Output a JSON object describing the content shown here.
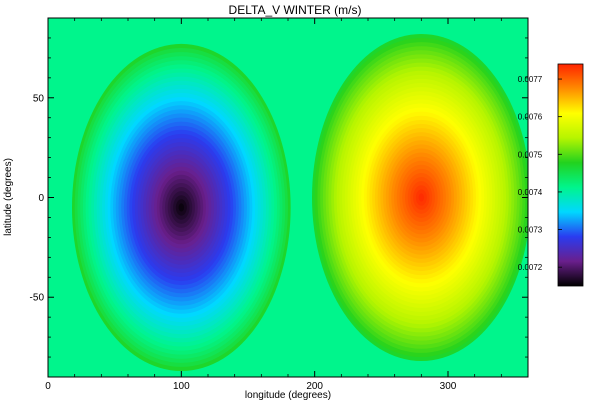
{
  "chart_data": {
    "type": "heatmap",
    "title": "DELTA_V WINTER (m/s)",
    "xlabel": "longitude (degrees)",
    "ylabel": "latitude (degrees)",
    "xlim": [
      0,
      360
    ],
    "ylim": [
      -90,
      90
    ],
    "x_ticks": [
      0,
      100,
      200,
      300
    ],
    "y_ticks": [
      -50,
      0,
      50
    ],
    "x_tick_labels": [
      "0",
      "100",
      "200",
      "300"
    ],
    "y_tick_labels": [
      "-50",
      "0",
      "50"
    ],
    "colorbar": {
      "range": [
        0.00715,
        0.00774
      ],
      "tick_values": [
        0.0072,
        0.0073,
        0.0074,
        0.0075,
        0.0076,
        0.0077
      ],
      "tick_labels": [
        "0.0072",
        "0.0073",
        "0.0074",
        "0.0075",
        "0.0076",
        "0.0077"
      ],
      "colormap": [
        "#000000",
        "#6a1f8c",
        "#2a3cf0",
        "#00d8ff",
        "#00f58c",
        "#22d21e",
        "#b6f500",
        "#ffff00",
        "#ff8c00",
        "#ff2400"
      ],
      "placement": "right"
    },
    "field": {
      "minimum": {
        "lon": 100,
        "lat": -5,
        "value": 0.00715
      },
      "maximum": {
        "lon": 280,
        "lat": 0,
        "value": 0.00774
      },
      "background_value": 0.00747
    }
  }
}
